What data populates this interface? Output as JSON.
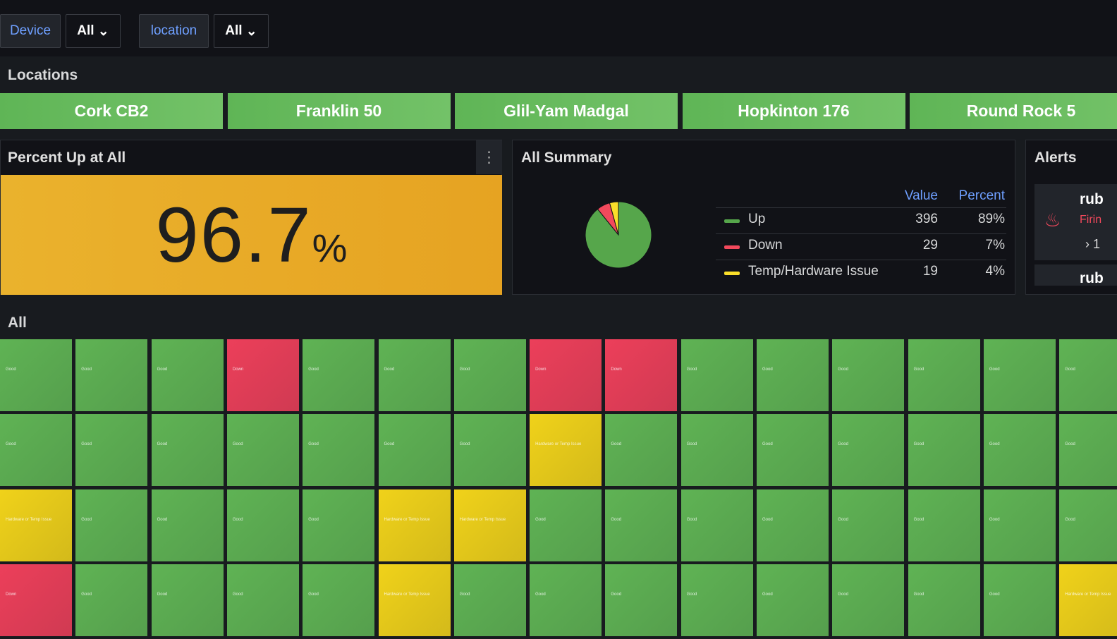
{
  "variables": [
    {
      "label": "Device",
      "value": "All"
    },
    {
      "label": "location",
      "value": "All"
    }
  ],
  "locations_row": {
    "title": "Locations",
    "buttons": [
      "Cork CB2",
      "Franklin 50",
      "Glil-Yam Madgal",
      "Hopkinton 176",
      "Round Rock 5"
    ]
  },
  "stat_panel": {
    "title": "Percent Up at All",
    "value": 96.7,
    "unit": "%"
  },
  "summary_panel": {
    "title": "All Summary",
    "columns": [
      "Value",
      "Percent"
    ],
    "series": [
      {
        "name": "Up",
        "color": "#56a64b",
        "value": 396,
        "percent": "89%"
      },
      {
        "name": "Down",
        "color": "#f2495c",
        "value": 29,
        "percent": "7%"
      },
      {
        "name": "Temp/Hardware Issue",
        "color": "#fade2a",
        "value": 19,
        "percent": "4%"
      }
    ]
  },
  "alerts_panel": {
    "title": "Alerts",
    "items": [
      {
        "name": "rub",
        "state": "Firin",
        "count": "1"
      },
      {
        "name": "rub"
      }
    ]
  },
  "status_row": {
    "title": "All",
    "status_colors": {
      "Good": "#5fb354",
      "Down": "#ec3f5a",
      "Hardware or Temp Issue": "#f0d21a"
    },
    "tiles": [
      [
        "Good",
        "Good",
        "Good",
        "Down",
        "Good",
        "Good",
        "Good",
        "Down",
        "Down",
        "Good",
        "Good",
        "Good",
        "Good",
        "Good",
        "Good"
      ],
      [
        "Good",
        "Good",
        "Good",
        "Good",
        "Good",
        "Good",
        "Good",
        "Hardware or Temp Issue",
        "Good",
        "Good",
        "Good",
        "Good",
        "Good",
        "Good",
        "Good"
      ],
      [
        "Hardware or Temp Issue",
        "Good",
        "Good",
        "Good",
        "Good",
        "Hardware or Temp Issue",
        "Hardware or Temp Issue",
        "Good",
        "Good",
        "Good",
        "Good",
        "Good",
        "Good",
        "Good",
        "Good"
      ],
      [
        "Down",
        "Good",
        "Good",
        "Good",
        "Good",
        "Hardware or Temp Issue",
        "Good",
        "Good",
        "Good",
        "Good",
        "Good",
        "Good",
        "Good",
        "Good",
        "Hardware or Temp Issue"
      ]
    ]
  }
}
